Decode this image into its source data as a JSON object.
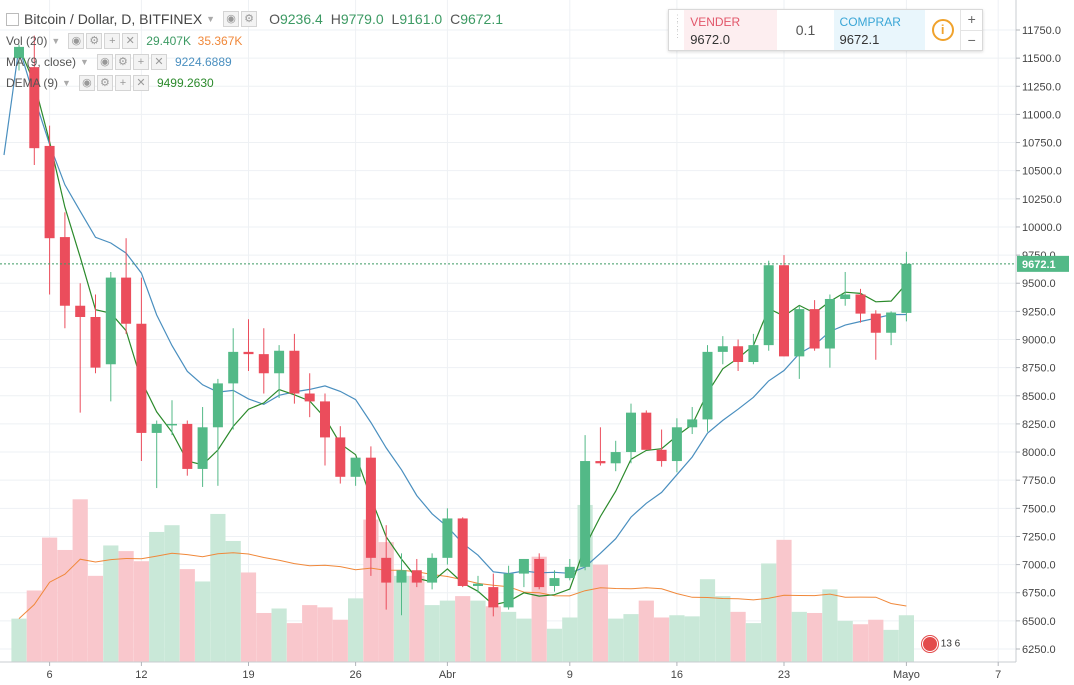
{
  "header": {
    "symbol": "Bitcoin / Dollar, D, BITFINEX",
    "ohlc": {
      "o_label": "O",
      "o": "9236.4",
      "h_label": "H",
      "h": "9779.0",
      "l_label": "L",
      "l": "9161.0",
      "c_label": "C",
      "c": "9672.1"
    }
  },
  "indicators": {
    "vol": {
      "label": "Vol (20)",
      "v1": "29.407K",
      "v2": "35.367K"
    },
    "ma": {
      "label": "MA (9, close)",
      "value": "9224.6889"
    },
    "dema": {
      "label": "DEMA (9)",
      "value": "9499.2630"
    }
  },
  "trade_panel": {
    "sell_label": "VENDER",
    "sell_price": "9672.0",
    "qty": "0.1",
    "buy_label": "COMPRAR",
    "buy_price": "9672.1",
    "info_icon": "info-icon",
    "plus": "+",
    "minus": "−"
  },
  "events": {
    "badge": "13 6"
  },
  "colors": {
    "up": "#53b987",
    "down": "#eb4d5c",
    "vol_up": "#c9e8d8",
    "vol_down": "#f9c7cc",
    "ma": "#4a8fbf",
    "dema": "#2b8a2b",
    "vol_ma": "#f0883a",
    "price_line": "#3c9a63"
  },
  "chart_data": {
    "type": "candlestick",
    "price_axis": {
      "min": 6250,
      "max": 11750,
      "step": 250,
      "labels": [
        "11750.0",
        "11500.0",
        "11250.0",
        "11000.0",
        "10750.0",
        "10500.0",
        "10250.0",
        "10000.0",
        "9750.0",
        "9500.0",
        "9250.0",
        "9000.0",
        "8750.0",
        "8500.0",
        "8250.0",
        "8000.0",
        "7750.0",
        "7500.0",
        "7250.0",
        "7000.0",
        "6750.0",
        "6500.0",
        "6250.0"
      ]
    },
    "last_price": "9672.1",
    "x_ticks": [
      {
        "label": "6",
        "index": 2
      },
      {
        "label": "12",
        "index": 8
      },
      {
        "label": "19",
        "index": 15
      },
      {
        "label": "26",
        "index": 22
      },
      {
        "label": "Abr",
        "index": 28
      },
      {
        "label": "9",
        "index": 36
      },
      {
        "label": "16",
        "index": 43
      },
      {
        "label": "23",
        "index": 50
      },
      {
        "label": "Mayo",
        "index": 58
      },
      {
        "label": "7",
        "index": 64
      }
    ],
    "candles": [
      {
        "o": 11500,
        "h": 11620,
        "l": 11390,
        "c": 11600,
        "v": 6520
      },
      {
        "o": 11420,
        "h": 11700,
        "l": 10550,
        "c": 10700,
        "v": 6770
      },
      {
        "o": 10720,
        "h": 10900,
        "l": 9400,
        "c": 9900,
        "v": 7240
      },
      {
        "o": 9910,
        "h": 10130,
        "l": 9100,
        "c": 9300,
        "v": 7130
      },
      {
        "o": 9300,
        "h": 9500,
        "l": 8350,
        "c": 9200,
        "v": 7580
      },
      {
        "o": 9200,
        "h": 9400,
        "l": 8700,
        "c": 8750,
        "v": 6900
      },
      {
        "o": 8780,
        "h": 9600,
        "l": 8450,
        "c": 9550,
        "v": 7170
      },
      {
        "o": 9550,
        "h": 9900,
        "l": 9050,
        "c": 9140,
        "v": 7120
      },
      {
        "o": 9140,
        "h": 9550,
        "l": 7920,
        "c": 8170,
        "v": 7030
      },
      {
        "o": 8170,
        "h": 8280,
        "l": 7680,
        "c": 8250,
        "v": 7290
      },
      {
        "o": 8250,
        "h": 8460,
        "l": 8150,
        "c": 8250,
        "v": 7350
      },
      {
        "o": 8250,
        "h": 8280,
        "l": 7790,
        "c": 7850,
        "v": 6960
      },
      {
        "o": 7850,
        "h": 8400,
        "l": 7690,
        "c": 8220,
        "v": 6850
      },
      {
        "o": 8220,
        "h": 8650,
        "l": 7700,
        "c": 8610,
        "v": 7450
      },
      {
        "o": 8610,
        "h": 9100,
        "l": 8200,
        "c": 8890,
        "v": 7210
      },
      {
        "o": 8890,
        "h": 9180,
        "l": 8720,
        "c": 8870,
        "v": 6930
      },
      {
        "o": 8870,
        "h": 9100,
        "l": 8520,
        "c": 8700,
        "v": 6570
      },
      {
        "o": 8700,
        "h": 8950,
        "l": 8480,
        "c": 8900,
        "v": 6610
      },
      {
        "o": 8900,
        "h": 9050,
        "l": 8430,
        "c": 8520,
        "v": 6480
      },
      {
        "o": 8520,
        "h": 8700,
        "l": 8310,
        "c": 8450,
        "v": 6640
      },
      {
        "o": 8450,
        "h": 8520,
        "l": 7880,
        "c": 8130,
        "v": 6620
      },
      {
        "o": 8130,
        "h": 8230,
        "l": 7720,
        "c": 7780,
        "v": 6510
      },
      {
        "o": 7780,
        "h": 7950,
        "l": 7700,
        "c": 7950,
        "v": 6700
      },
      {
        "o": 7950,
        "h": 8050,
        "l": 6900,
        "c": 7060,
        "v": 7400
      },
      {
        "o": 7060,
        "h": 7350,
        "l": 6600,
        "c": 6840,
        "v": 7200
      },
      {
        "o": 6840,
        "h": 7100,
        "l": 6550,
        "c": 6950,
        "v": 6900
      },
      {
        "o": 6950,
        "h": 7050,
        "l": 6800,
        "c": 6840,
        "v": 6900
      },
      {
        "o": 6840,
        "h": 7100,
        "l": 6780,
        "c": 7060,
        "v": 6640
      },
      {
        "o": 7060,
        "h": 7500,
        "l": 7000,
        "c": 7410,
        "v": 6680
      },
      {
        "o": 7410,
        "h": 7420,
        "l": 6800,
        "c": 6810,
        "v": 6720
      },
      {
        "o": 6810,
        "h": 6900,
        "l": 6750,
        "c": 6830,
        "v": 6680
      },
      {
        "o": 6800,
        "h": 6920,
        "l": 6540,
        "c": 6620,
        "v": 6630
      },
      {
        "o": 6620,
        "h": 6990,
        "l": 6600,
        "c": 6920,
        "v": 6580
      },
      {
        "o": 6920,
        "h": 7050,
        "l": 6800,
        "c": 7050,
        "v": 6520
      },
      {
        "o": 7050,
        "h": 7100,
        "l": 6780,
        "c": 6800,
        "v": 7070
      },
      {
        "o": 6810,
        "h": 6950,
        "l": 6760,
        "c": 6880,
        "v": 6430
      },
      {
        "o": 6880,
        "h": 7050,
        "l": 6860,
        "c": 6980,
        "v": 6530
      },
      {
        "o": 6980,
        "h": 8150,
        "l": 6950,
        "c": 7920,
        "v": 7530
      },
      {
        "o": 7920,
        "h": 8220,
        "l": 7880,
        "c": 7900,
        "v": 7000
      },
      {
        "o": 7900,
        "h": 8100,
        "l": 7830,
        "c": 8000,
        "v": 6520
      },
      {
        "o": 8000,
        "h": 8430,
        "l": 7900,
        "c": 8350,
        "v": 6560
      },
      {
        "o": 8350,
        "h": 8370,
        "l": 8020,
        "c": 8020,
        "v": 6680
      },
      {
        "o": 8020,
        "h": 8200,
        "l": 7870,
        "c": 7920,
        "v": 6530
      },
      {
        "o": 7920,
        "h": 8300,
        "l": 7820,
        "c": 8220,
        "v": 6550
      },
      {
        "o": 8220,
        "h": 8400,
        "l": 8160,
        "c": 8290,
        "v": 6540
      },
      {
        "o": 8290,
        "h": 8950,
        "l": 8180,
        "c": 8890,
        "v": 6870
      },
      {
        "o": 8890,
        "h": 9030,
        "l": 8780,
        "c": 8940,
        "v": 6720
      },
      {
        "o": 8940,
        "h": 9000,
        "l": 8720,
        "c": 8800,
        "v": 6580
      },
      {
        "o": 8800,
        "h": 9050,
        "l": 8780,
        "c": 8950,
        "v": 6480
      },
      {
        "o": 8950,
        "h": 9700,
        "l": 8900,
        "c": 9660,
        "v": 7010
      },
      {
        "o": 9660,
        "h": 9750,
        "l": 8850,
        "c": 8850,
        "v": 7220
      },
      {
        "o": 8850,
        "h": 9300,
        "l": 8650,
        "c": 9270,
        "v": 6580
      },
      {
        "o": 9270,
        "h": 9350,
        "l": 8900,
        "c": 8920,
        "v": 6570
      },
      {
        "o": 8920,
        "h": 9400,
        "l": 8750,
        "c": 9360,
        "v": 6780
      },
      {
        "o": 9360,
        "h": 9600,
        "l": 9300,
        "c": 9400,
        "v": 6500
      },
      {
        "o": 9400,
        "h": 9450,
        "l": 9150,
        "c": 9230,
        "v": 6470
      },
      {
        "o": 9230,
        "h": 9260,
        "l": 8820,
        "c": 9060,
        "v": 6510
      },
      {
        "o": 9060,
        "h": 9250,
        "l": 8950,
        "c": 9240,
        "v": 6420
      },
      {
        "o": 9236.4,
        "h": 9779,
        "l": 9161,
        "c": 9672.1,
        "v": 6550
      }
    ]
  }
}
